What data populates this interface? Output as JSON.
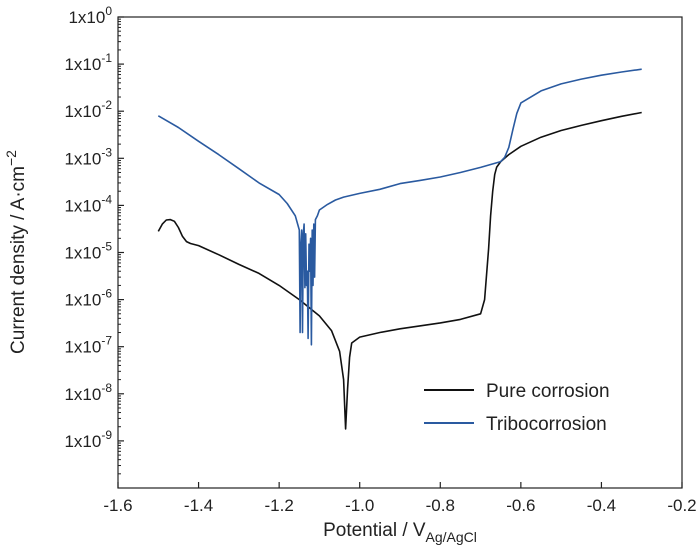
{
  "chart_data": {
    "type": "line",
    "title": "",
    "xlabel": "Potential / V",
    "xlabel_sub": "Ag/AgCl",
    "ylabel": "Current density / A·cm",
    "ylabel_sup": "−2",
    "xlim": [
      -1.6,
      -0.2
    ],
    "ylim": [
      1e-10,
      1
    ],
    "yscale": "log",
    "grid": false,
    "legend_position": "bottom-right",
    "x_ticks": [
      {
        "value": -1.6,
        "label": "-1.6"
      },
      {
        "value": -1.4,
        "label": "-1.4"
      },
      {
        "value": -1.2,
        "label": "-1.2"
      },
      {
        "value": -1.0,
        "label": "-1.0"
      },
      {
        "value": -0.8,
        "label": "-0.8"
      },
      {
        "value": -0.6,
        "label": "-0.6"
      },
      {
        "value": -0.4,
        "label": "-0.4"
      },
      {
        "value": -0.2,
        "label": "-0.2"
      }
    ],
    "y_ticks": [
      {
        "value": 1e-09,
        "base": "1x10",
        "exp": "-9"
      },
      {
        "value": 1e-08,
        "base": "1x10",
        "exp": "-8"
      },
      {
        "value": 1e-07,
        "base": "1x10",
        "exp": "-7"
      },
      {
        "value": 1e-06,
        "base": "1x10",
        "exp": "-6"
      },
      {
        "value": 1e-05,
        "base": "1x10",
        "exp": "-5"
      },
      {
        "value": 0.0001,
        "base": "1x10",
        "exp": "-4"
      },
      {
        "value": 0.001,
        "base": "1x10",
        "exp": "-3"
      },
      {
        "value": 0.01,
        "base": "1x10",
        "exp": "-2"
      },
      {
        "value": 0.1,
        "base": "1x10",
        "exp": "-1"
      },
      {
        "value": 1,
        "base": "1x10",
        "exp": "0"
      }
    ],
    "series": [
      {
        "name": "Pure corrosion",
        "color": "#111111",
        "x": [
          -1.5,
          -1.49,
          -1.48,
          -1.47,
          -1.46,
          -1.45,
          -1.44,
          -1.43,
          -1.42,
          -1.4,
          -1.35,
          -1.3,
          -1.25,
          -1.2,
          -1.15,
          -1.1,
          -1.07,
          -1.05,
          -1.04,
          -1.035,
          -1.03,
          -1.025,
          -1.02,
          -1.0,
          -0.95,
          -0.9,
          -0.8,
          -0.75,
          -0.7,
          -0.69,
          -0.68,
          -0.675,
          -0.67,
          -0.665,
          -0.66,
          -0.65,
          -0.63,
          -0.6,
          -0.55,
          -0.5,
          -0.45,
          -0.4,
          -0.35,
          -0.3
        ],
        "y": [
          2.8e-05,
          4e-05,
          4.9e-05,
          5e-05,
          4.6e-05,
          3.4e-05,
          2.2e-05,
          1.7e-05,
          1.55e-05,
          1.4e-05,
          9e-06,
          5.6e-06,
          3.6e-06,
          2e-06,
          1e-06,
          4.5e-07,
          2.2e-07,
          8e-08,
          2e-08,
          1.8e-09,
          1.3e-08,
          6e-08,
          1.2e-07,
          1.6e-07,
          2e-07,
          2.4e-07,
          3.2e-07,
          3.8e-07,
          5e-07,
          1e-06,
          1.2e-05,
          6e-05,
          0.0002,
          0.00045,
          0.00065,
          0.00085,
          0.0012,
          0.0018,
          0.0028,
          0.0039,
          0.005,
          0.0063,
          0.0078,
          0.0094
        ]
      },
      {
        "name": "Tribocorrosion",
        "color": "#2a5aa0",
        "x": [
          -1.5,
          -1.45,
          -1.4,
          -1.35,
          -1.3,
          -1.25,
          -1.2,
          -1.18,
          -1.16,
          -1.15,
          -1.148,
          -1.146,
          -1.144,
          -1.142,
          -1.14,
          -1.138,
          -1.136,
          -1.134,
          -1.132,
          -1.13,
          -1.128,
          -1.126,
          -1.124,
          -1.122,
          -1.12,
          -1.118,
          -1.116,
          -1.114,
          -1.112,
          -1.11,
          -1.105,
          -1.1,
          -1.08,
          -1.06,
          -1.04,
          -1.0,
          -0.95,
          -0.9,
          -0.85,
          -0.8,
          -0.75,
          -0.7,
          -0.65,
          -0.64,
          -0.63,
          -0.62,
          -0.61,
          -0.6,
          -0.55,
          -0.5,
          -0.45,
          -0.4,
          -0.35,
          -0.3
        ],
        "y": [
          0.008,
          0.0045,
          0.0023,
          0.0012,
          0.0006,
          0.0003,
          0.00017,
          0.00011,
          6e-05,
          3e-05,
          2e-07,
          1.5e-05,
          3e-05,
          2e-07,
          2.5e-05,
          4e-05,
          1.8e-06,
          2.5e-05,
          2e-06,
          4e-06,
          1.5e-07,
          1.5e-05,
          4e-06,
          2e-05,
          1.1e-07,
          3e-05,
          2e-06,
          4e-05,
          3e-06,
          5e-05,
          6e-05,
          8e-05,
          0.000105,
          0.00013,
          0.00015,
          0.00018,
          0.00022,
          0.00029,
          0.00034,
          0.0004,
          0.0005,
          0.00064,
          0.00085,
          0.00105,
          0.0017,
          0.004,
          0.009,
          0.015,
          0.027,
          0.038,
          0.048,
          0.058,
          0.068,
          0.078
        ]
      }
    ]
  }
}
